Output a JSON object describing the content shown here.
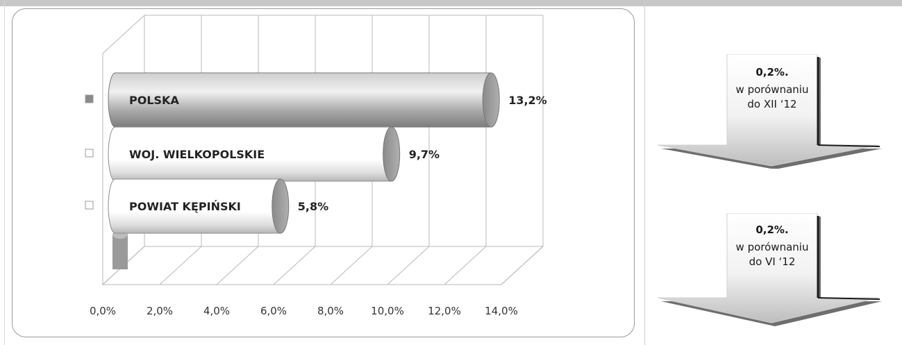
{
  "chart_data": {
    "type": "bar",
    "orientation": "horizontal",
    "categories": [
      "POLSKA",
      "WOJ. WIELKOPOLSKIE",
      "POWIAT KĘPIŃSKI"
    ],
    "values": [
      13.2,
      9.7,
      5.8
    ],
    "data_labels": [
      "13,2%",
      "9,7%",
      "5,8%"
    ],
    "x_ticks": [
      "0,0%",
      "2,0%",
      "4,0%",
      "6,0%",
      "8,0%",
      "10,0%",
      "12,0%",
      "14,0%"
    ],
    "xlim": [
      0,
      14
    ],
    "grid": true,
    "legend": "left",
    "colors": {
      "polska": "#8f8f8f",
      "others": "#ffffff"
    }
  },
  "arrows": [
    {
      "value": "0,2%.",
      "line1": "w porównaniu",
      "line2": "do XII ‘12"
    },
    {
      "value": "0,2%.",
      "line1": "w porównaniu",
      "line2": "do VI ‘12"
    }
  ]
}
